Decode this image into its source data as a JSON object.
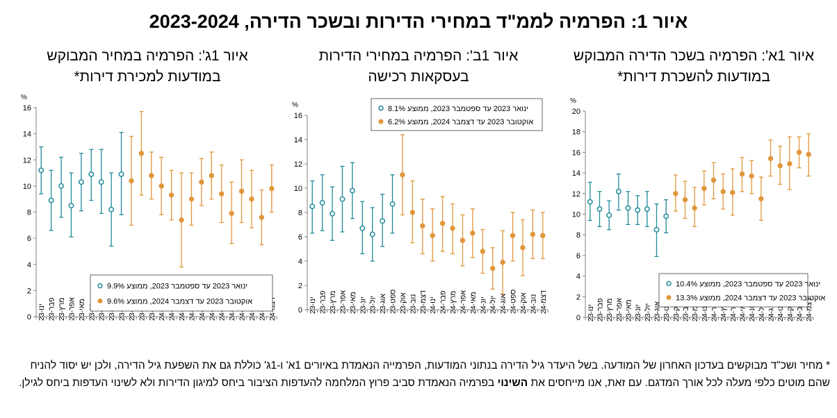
{
  "title": "איור 1: הפרמיה לממ\"ד במחירי הדירות ובשכר הדירה, 2023-2024",
  "colors": {
    "teal": "#1F8A99",
    "orange": "#E0963A"
  },
  "footnote": {
    "part1": "* מחיר ושכ\"ד מבוקשים בעדכון האחרון של המודעה. בשל היעדר גיל הדירה בנתוני המודעות, הפרמייה הנאמדת באיורים 1א' ו-1ג' כוללת גם את השפעת גיל הדירה, ולכן יש יסוד להניח שהם מוטים כלפי מעלה לכל אורך המדגם. עם זאת, אנו מייחסים את ",
    "emph": "השינוי",
    "part2": " בפרמיה הנאמדת סביב פרוץ המלחמה להעדפות הציבור ביחס למיגון הדירות ולא לשינוי העדפות ביחס לגילן."
  },
  "chart_data": [
    {
      "id": "1a",
      "type": "scatter",
      "title_line1": "איור 1א': הפרמיה בשכר הדירה המבוקש",
      "title_line2": "במודעות להשכרת דירות*",
      "ylabel": "%",
      "ylim": [
        0,
        20
      ],
      "yticks": [
        "0",
        "2",
        "4",
        "6",
        "8",
        "10",
        "12",
        "14",
        "16",
        "18",
        "20"
      ],
      "categories": [
        "ינו-23",
        "פבר-23",
        "מרץ-23",
        "אפר-23",
        "מאי-23",
        "יונ-23",
        "יול-23",
        "אוג-23",
        "ספט-23",
        "אוק-23",
        "נוב-23",
        "דצמ-23",
        "ינו-24",
        "פבר-24",
        "מרץ-24",
        "אפר-24",
        "מאי-24",
        "יונ-24",
        "יול-24",
        "אוג-24",
        "ספט-24",
        "אוק-24",
        "נוב-24",
        "דצמ-24"
      ],
      "legend": [
        "ינואר 2023 עד ספטמבר 2023, ממוצע 10.4%",
        "אוקטובר 2023 עד דצמבר 2024, ממוצע 13.3%"
      ],
      "legend_position": "bottom-right",
      "series": [
        {
          "period": 1,
          "values": [
            11.2,
            10.5,
            9.9,
            12.2,
            10.6,
            10.4,
            10.5,
            8.5,
            9.8
          ],
          "lower": [
            9.4,
            8.8,
            8.5,
            10.4,
            9.0,
            9.0,
            8.8,
            5.9,
            8.2
          ],
          "upper": [
            13.1,
            12.2,
            11.3,
            13.9,
            12.2,
            11.8,
            12.2,
            11.0,
            11.4
          ]
        },
        {
          "period": 2,
          "values": [
            12.0,
            11.4,
            10.6,
            12.5,
            13.3,
            12.2,
            12.1,
            13.9,
            13.7,
            11.5,
            15.4,
            14.7,
            14.9,
            16.0,
            15.8
          ],
          "lower": [
            10.3,
            9.6,
            8.8,
            10.9,
            11.5,
            10.5,
            9.9,
            12.2,
            12.0,
            9.4,
            13.7,
            12.9,
            12.4,
            14.5,
            13.7
          ],
          "upper": [
            13.8,
            13.2,
            12.6,
            14.2,
            15.0,
            13.9,
            14.4,
            15.5,
            15.2,
            13.6,
            17.2,
            16.6,
            17.5,
            17.5,
            17.8
          ]
        }
      ]
    },
    {
      "id": "1b",
      "type": "scatter",
      "title_line1": "איור 1ב': הפרמיה במחירי הדירות",
      "title_line2": "בעסקאות רכישה",
      "ylabel": "%",
      "ylim": [
        0,
        16
      ],
      "yticks": [
        "0",
        "2",
        "4",
        "6",
        "8",
        "10",
        "12",
        "14",
        "16"
      ],
      "categories": [
        "ינו-23",
        "פבר-23",
        "מרץ-23",
        "אפר-23",
        "מאי-23",
        "יונ-23",
        "יול-23",
        "אוג-23",
        "ספט-23",
        "אוק-23",
        "נוב-23",
        "דצמ-23",
        "ינו-24",
        "פבר-24",
        "מרץ-24",
        "אפר-24",
        "מאי-24",
        "יונ-24",
        "יול-24",
        "אוג-24",
        "ספט-24",
        "אוק-24",
        "נוב-24",
        "דצמ-24"
      ],
      "legend": [
        "ינואר 2023 עד ספטמבר 2023, ממוצע 8.1%",
        "אוקטובר 2023 עד דצמבר 2024, ממוצע 6.2%"
      ],
      "legend_position": "top-right",
      "series": [
        {
          "period": 1,
          "values": [
            8.5,
            8.8,
            7.9,
            9.1,
            9.8,
            6.7,
            6.2,
            7.3,
            8.7
          ],
          "lower": [
            6.3,
            6.5,
            5.7,
            6.4,
            7.5,
            4.6,
            4.0,
            5.2,
            6.3
          ],
          "upper": [
            10.6,
            11.1,
            10.1,
            11.8,
            12.1,
            8.9,
            8.4,
            9.5,
            11.1
          ]
        },
        {
          "period": 2,
          "values": [
            11.1,
            8.0,
            6.9,
            6.1,
            7.1,
            6.7,
            5.7,
            6.3,
            4.8,
            3.4,
            3.9,
            6.1,
            5.1,
            6.2,
            6.1
          ],
          "lower": [
            7.8,
            5.5,
            4.6,
            4.0,
            4.8,
            4.6,
            3.6,
            4.3,
            3.0,
            1.7,
            1.3,
            4.0,
            2.8,
            4.2,
            4.2
          ],
          "upper": [
            14.4,
            10.6,
            9.1,
            8.3,
            9.3,
            8.7,
            7.8,
            8.3,
            6.6,
            5.1,
            6.5,
            8.0,
            7.4,
            8.2,
            8.0
          ]
        }
      ]
    },
    {
      "id": "1c",
      "type": "scatter",
      "title_line1": "איור 1ג': הפרמיה במחיר המבוקש",
      "title_line2": "במודעות למכירת דירות*",
      "ylabel": "%",
      "ylim": [
        0,
        16
      ],
      "yticks": [
        "0",
        "2",
        "4",
        "6",
        "8",
        "10",
        "12",
        "14",
        "16"
      ],
      "categories": [
        "ינו-23",
        "פבר-23",
        "מרץ-23",
        "אפר-23",
        "מאי-23",
        "יונ-23",
        "יול-23",
        "אוג-23",
        "ספט-23",
        "אוק-23",
        "נוב-23",
        "דצמ-23",
        "ינו-24",
        "פבר-24",
        "מרץ-24",
        "אפר-24",
        "מאי-24",
        "יונ-24",
        "יול-24",
        "אוג-24",
        "ספט-24",
        "אוק-24",
        "נוב-24",
        "דצמ-24"
      ],
      "legend": [
        "ינואר 2023 עד ספטמבר 2023, ממוצע 9.9%",
        "אוקטובר 2023 עד דצמבר 2024, ממוצע 9.6%"
      ],
      "legend_position": "bottom-right",
      "series": [
        {
          "period": 1,
          "values": [
            11.2,
            8.9,
            10.0,
            8.5,
            10.3,
            10.9,
            10.3,
            8.2,
            10.9
          ],
          "lower": [
            9.4,
            6.6,
            7.6,
            6.1,
            8.1,
            8.9,
            7.9,
            5.4,
            7.8
          ],
          "upper": [
            13.0,
            11.2,
            12.2,
            11.0,
            12.5,
            12.8,
            12.8,
            11.0,
            14.1
          ]
        },
        {
          "period": 2,
          "values": [
            10.4,
            12.5,
            10.8,
            10.0,
            9.3,
            7.4,
            9.0,
            10.3,
            10.8,
            9.4,
            7.9,
            9.6,
            9.0,
            7.6,
            9.8
          ],
          "lower": [
            7.0,
            9.3,
            9.0,
            7.8,
            7.4,
            3.8,
            7.0,
            8.5,
            9.0,
            7.2,
            5.6,
            7.2,
            6.8,
            5.5,
            8.0
          ],
          "upper": [
            13.8,
            15.7,
            12.6,
            12.2,
            11.2,
            11.0,
            11.0,
            12.1,
            12.6,
            11.6,
            10.3,
            12.0,
            11.2,
            9.7,
            11.6
          ]
        }
      ]
    }
  ]
}
